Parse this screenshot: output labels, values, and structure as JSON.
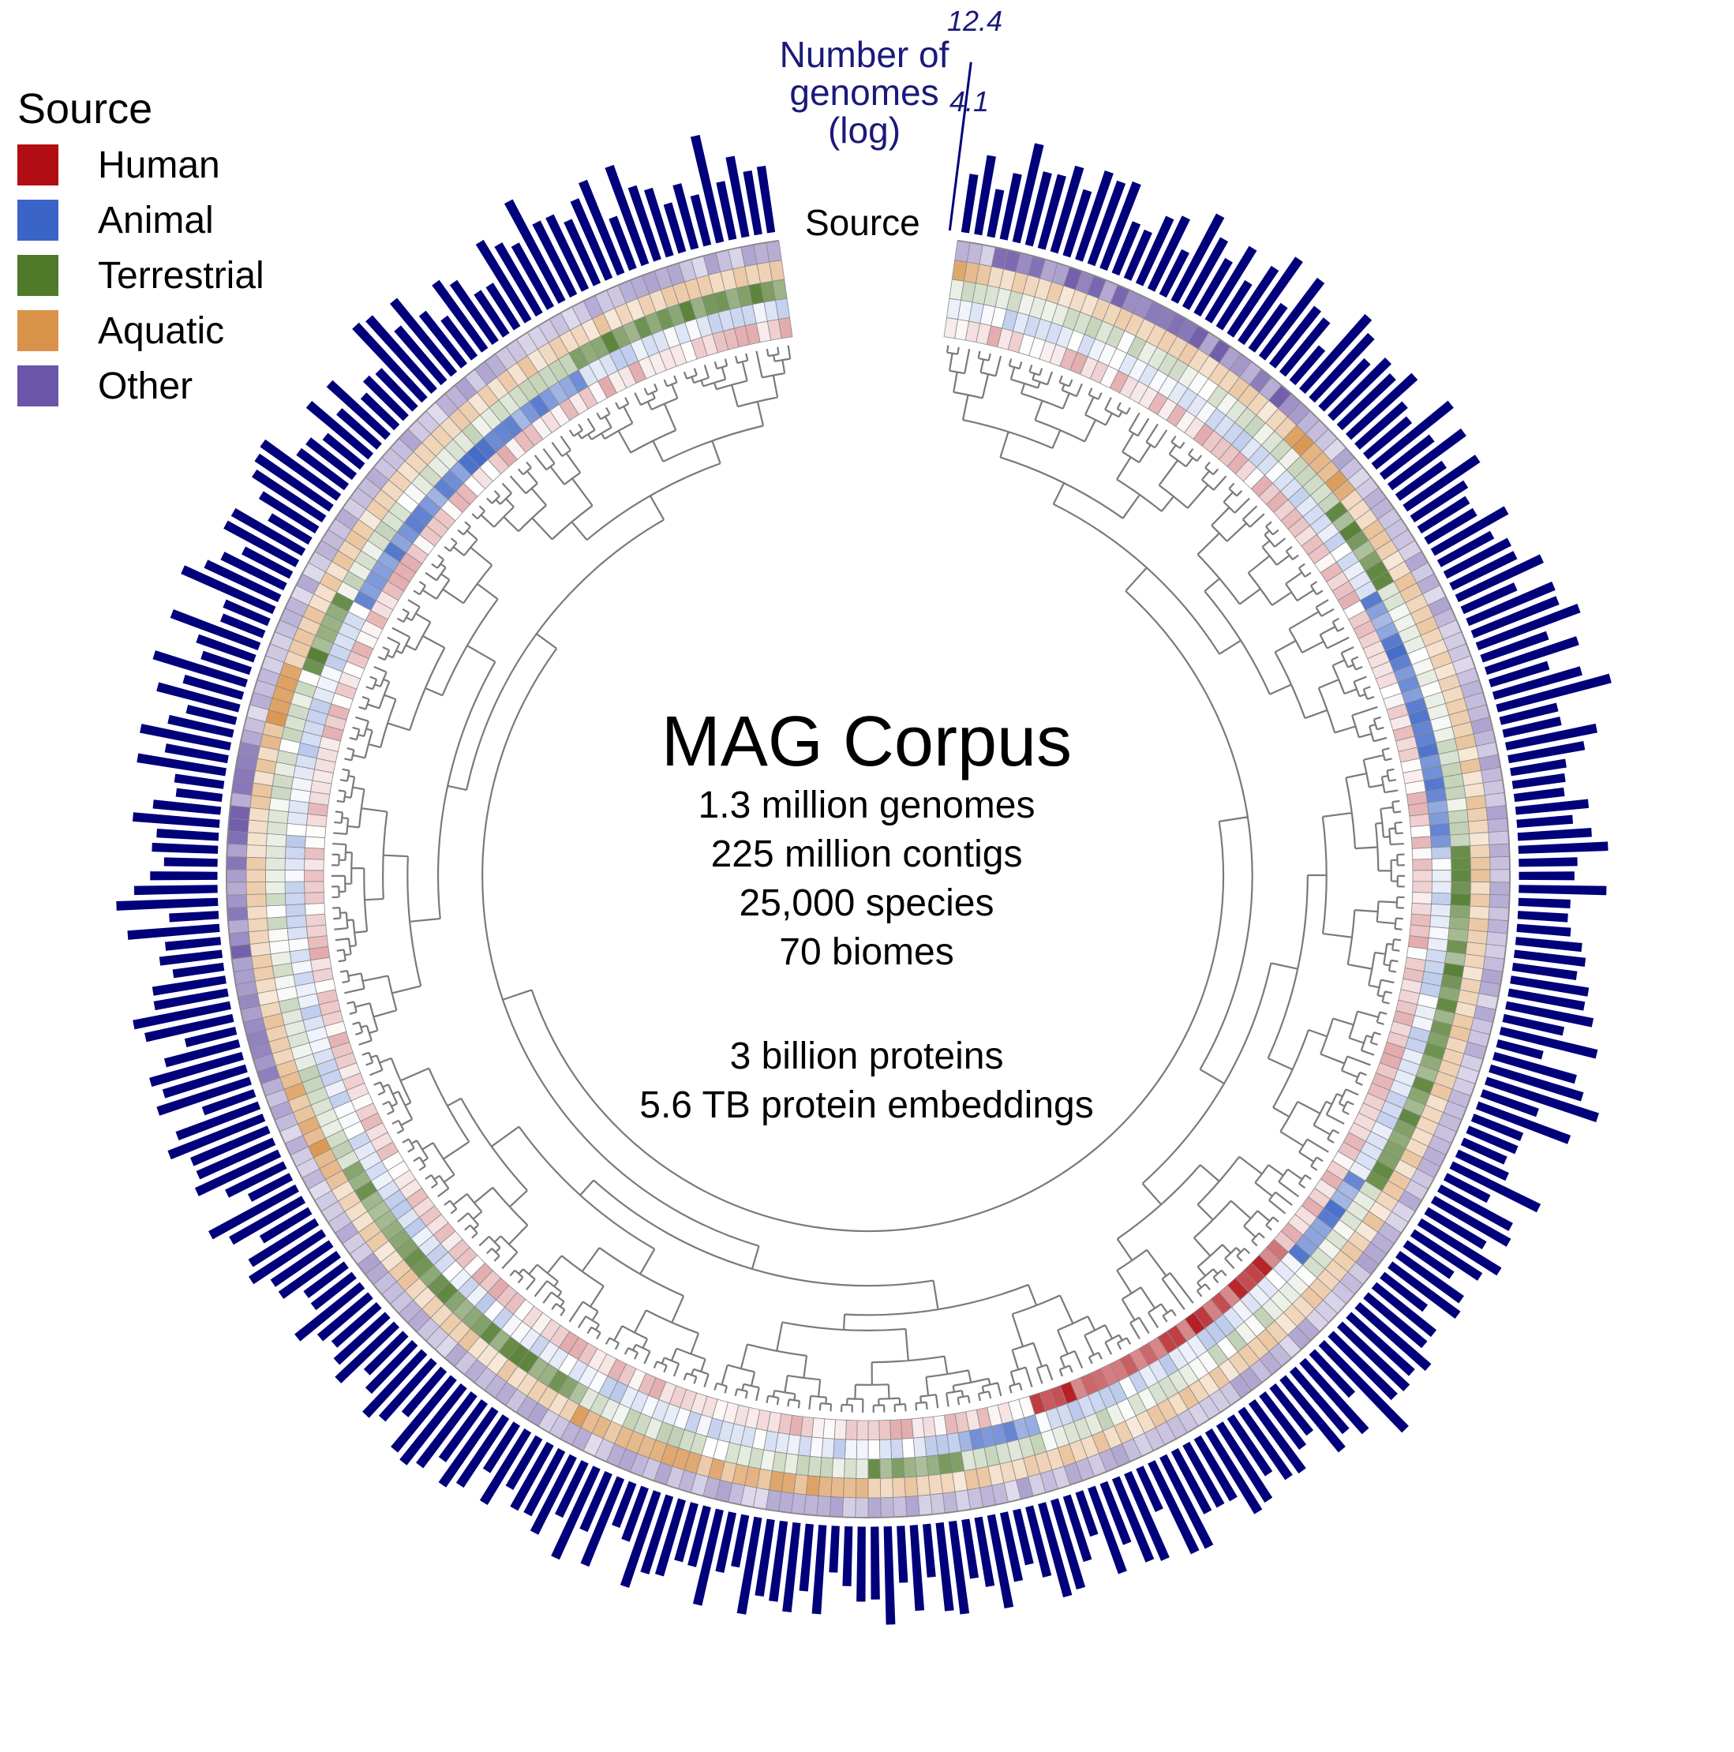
{
  "legend": {
    "title": "Source",
    "items": [
      {
        "label": "Human",
        "color": "#b10e14"
      },
      {
        "label": "Animal",
        "color": "#3a64c8"
      },
      {
        "label": "Terrestrial",
        "color": "#4e7a2a"
      },
      {
        "label": "Aquatic",
        "color": "#d9924a"
      },
      {
        "label": "Other",
        "color": "#6a55a8"
      }
    ]
  },
  "center": {
    "title": "MAG Corpus",
    "lines": [
      "1.3 million genomes",
      "225 million contigs",
      "25,000 species",
      "70 biomes"
    ],
    "lines2": [
      "3 billion proteins",
      "5.6 TB protein embeddings"
    ]
  },
  "ring_label": "Source",
  "axis": {
    "title_lines": [
      "Number of",
      "genomes",
      "(log)"
    ],
    "max_label": "12.4",
    "min_label": "4.1"
  },
  "chart_data": {
    "type": "circular-tree-heatmap-bar",
    "title": "MAG Corpus",
    "bar_axis": {
      "label": "Number of genomes (log)",
      "range": [
        4.1,
        12.4
      ],
      "color": "#00007a"
    },
    "heatmap_tracks": [
      "Human",
      "Animal",
      "Terrestrial",
      "Aquatic",
      "Other"
    ],
    "n_leaves": 300,
    "bar_seed": 7,
    "heat_seed": 11
  }
}
